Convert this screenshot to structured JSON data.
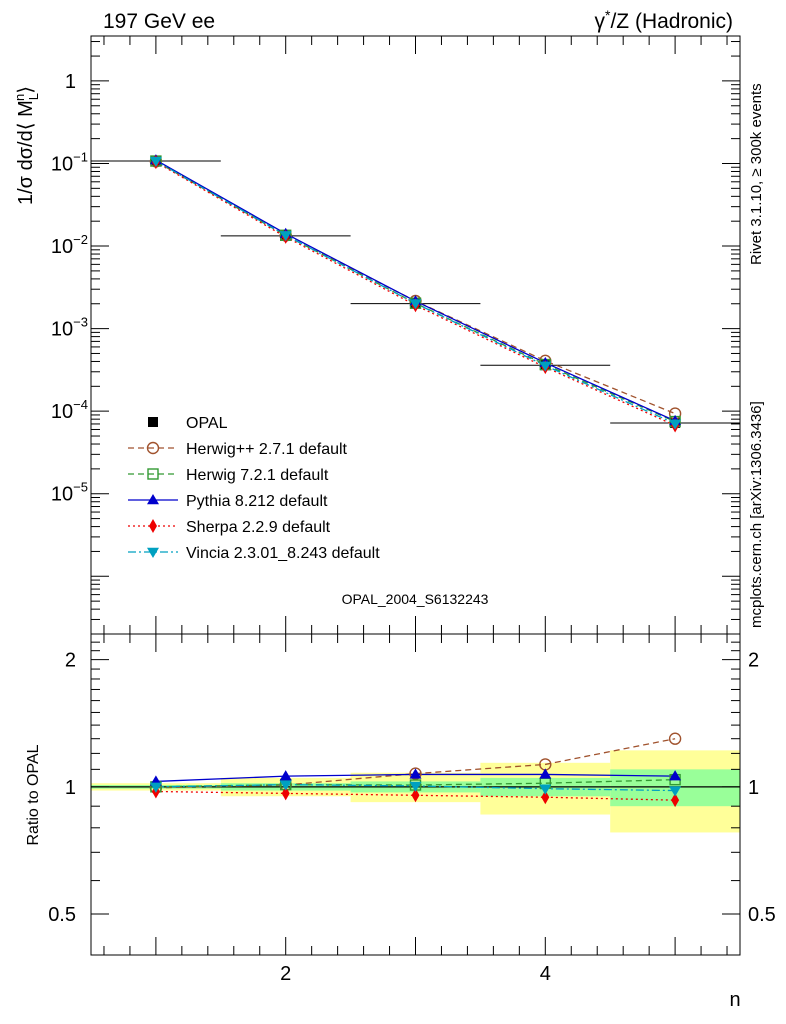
{
  "header": {
    "left_title": "197 GeV ee",
    "right_title_prefix": "γ",
    "right_title_sup": "*",
    "right_title_suffix": "/Z (Hadronic)"
  },
  "side": {
    "rivet": "Rivet 3.1.10, ≥ 300k events",
    "mcplots": "mcplots.cern.ch [arXiv:1306.3436]"
  },
  "analysis_id": "OPAL_2004_S6132243",
  "chart_data": [
    {
      "type": "line",
      "panel": "main",
      "ylabel": "1/σ dσ/d⟨ M_L^n⟩",
      "yscale": "log",
      "xlim": [
        0.5,
        5.5
      ],
      "ylim": [
        2e-07,
        3.5
      ],
      "ytick_labels": [
        {
          "base": "1",
          "exp": ""
        },
        {
          "base": "10",
          "exp": "−1"
        },
        {
          "base": "10",
          "exp": "−2"
        },
        {
          "base": "10",
          "exp": "−3"
        },
        {
          "base": "10",
          "exp": "−4"
        },
        {
          "base": "10",
          "exp": "−5"
        }
      ],
      "ytick_values": [
        1,
        0.1,
        0.01,
        0.001,
        0.0001,
        1e-05
      ],
      "x": [
        1,
        2,
        3,
        4,
        5
      ],
      "data": {
        "name": "OPAL",
        "values": [
          0.107,
          0.0133,
          0.00201,
          0.00036,
          7.2e-05
        ],
        "xerr": 0.5,
        "rel_err_inner": [
          0.01,
          0.02,
          0.03,
          0.05,
          0.1
        ],
        "rel_err_outer": [
          0.02,
          0.05,
          0.08,
          0.14,
          0.22
        ]
      },
      "series": [
        {
          "name": "Herwig++ 2.7.1 default",
          "color": "#a0522d",
          "dash": "6,4",
          "marker": "circle-open",
          "values": [
            0.106,
            0.0134,
            0.00216,
            0.000407,
            9.35e-05
          ]
        },
        {
          "name": "Herwig 7.2.1 default",
          "color": "#339933",
          "dash": "6,4",
          "marker": "square-open",
          "values": [
            0.107,
            0.0135,
            0.00203,
            0.000367,
            7.48e-05
          ]
        },
        {
          "name": "Pythia 8.212 default",
          "color": "#0000cc",
          "dash": "",
          "marker": "triangle-up",
          "values": [
            0.11,
            0.0141,
            0.00215,
            0.000385,
            7.63e-05
          ]
        },
        {
          "name": "Sherpa 2.2.9 default",
          "color": "#ee0000",
          "dash": "2,3",
          "marker": "diamond",
          "values": [
            0.104,
            0.0129,
            0.00192,
            0.000341,
            6.71e-05
          ]
        },
        {
          "name": "Vincia 2.3.01_8.243 default",
          "color": "#00a0c0",
          "dash": "8,3,2,3",
          "marker": "triangle-down",
          "values": [
            0.107,
            0.0135,
            0.00202,
            0.000356,
            7.06e-05
          ]
        }
      ]
    },
    {
      "type": "line",
      "panel": "ratio",
      "ylabel": "Ratio to OPAL",
      "xlabel": "n",
      "yscale": "log",
      "xlim": [
        0.5,
        5.5
      ],
      "ylim": [
        0.4,
        2.3
      ],
      "yticks": [
        0.5,
        1,
        2
      ],
      "ytick_labels": [
        "0.5",
        "1",
        "2"
      ],
      "xticks": [
        2,
        4
      ],
      "xtick_labels": [
        "2",
        "4"
      ],
      "x": [
        1,
        2,
        3,
        4,
        5
      ],
      "series": [
        {
          "name": "Herwig++ 2.7.1 default",
          "values": [
            0.995,
            1.01,
            1.075,
            1.13,
            1.3
          ]
        },
        {
          "name": "Herwig 7.2.1 default",
          "values": [
            1.0,
            1.012,
            1.01,
            1.02,
            1.04
          ]
        },
        {
          "name": "Pythia 8.212 default",
          "values": [
            1.03,
            1.06,
            1.07,
            1.07,
            1.06
          ]
        },
        {
          "name": "Sherpa 2.2.9 default",
          "values": [
            0.975,
            0.965,
            0.955,
            0.945,
            0.93
          ]
        },
        {
          "name": "Vincia 2.3.01_8.243 default",
          "values": [
            1.0,
            1.012,
            1.005,
            0.99,
            0.98
          ]
        }
      ]
    }
  ]
}
